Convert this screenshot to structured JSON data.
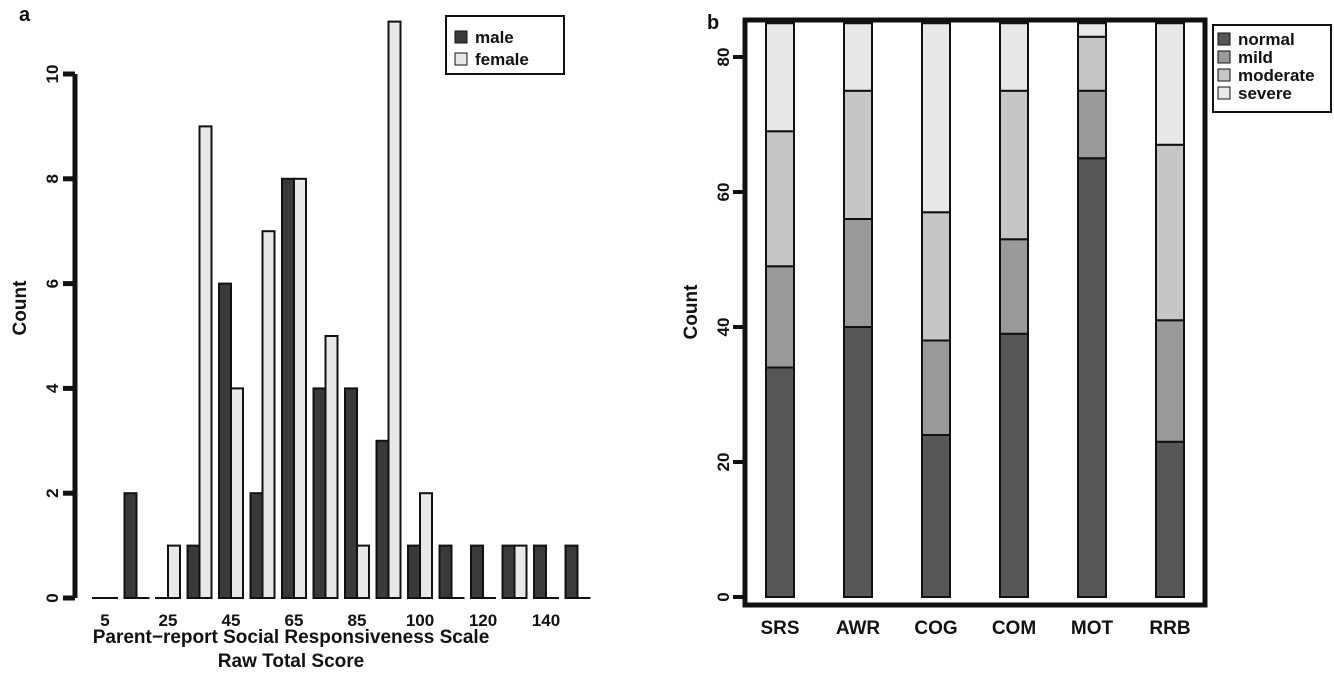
{
  "colors": {
    "male": "#3a3a3a",
    "female": "#e8e8e8",
    "normal": "#575757",
    "mild": "#9a9a9a",
    "moderate": "#c6c6c6",
    "severe": "#e8e8eb",
    "stroke": "#111111"
  },
  "chart_data": [
    {
      "panel": "a",
      "type": "bar",
      "title": "",
      "xlabel": [
        "Parent−report Social Responsiveness Scale",
        "Raw Total Score"
      ],
      "ylabel": "Count",
      "ylim": [
        0,
        11
      ],
      "yticks": [
        0,
        2,
        4,
        6,
        8,
        10
      ],
      "x_tick_labels": [
        "5",
        "25",
        "45",
        "65",
        "85",
        "100",
        "120",
        "140"
      ],
      "x_tick_positions": [
        5,
        25,
        45,
        65,
        85,
        100,
        120,
        140
      ],
      "bins": [
        5,
        15,
        25,
        35,
        45,
        55,
        65,
        75,
        85,
        95,
        100,
        110,
        120,
        130,
        140,
        150
      ],
      "legend_position": "top-right",
      "series": [
        {
          "name": "male",
          "values": [
            0,
            2,
            0,
            1,
            6,
            2,
            8,
            4,
            4,
            3,
            1,
            1,
            1,
            1,
            1,
            1
          ]
        },
        {
          "name": "female",
          "values": [
            0,
            0,
            1,
            9,
            4,
            7,
            8,
            5,
            1,
            11,
            2,
            0,
            0,
            1,
            0,
            0
          ]
        }
      ]
    },
    {
      "panel": "b",
      "type": "bar",
      "stacked": true,
      "title": "",
      "xlabel": "",
      "ylabel": "Count",
      "ylim": [
        0,
        85
      ],
      "yticks": [
        0,
        20,
        40,
        60,
        80
      ],
      "categories": [
        "SRS",
        "AWR",
        "COG",
        "COM",
        "MOT",
        "RRB"
      ],
      "legend_position": "outside-right",
      "series": [
        {
          "name": "normal",
          "values": [
            34,
            40,
            24,
            39,
            65,
            23
          ]
        },
        {
          "name": "mild",
          "values": [
            15,
            16,
            14,
            14,
            10,
            18
          ]
        },
        {
          "name": "moderate",
          "values": [
            20,
            19,
            19,
            22,
            8,
            26
          ]
        },
        {
          "name": "severe",
          "values": [
            16,
            10,
            28,
            10,
            2,
            18
          ]
        }
      ]
    }
  ]
}
